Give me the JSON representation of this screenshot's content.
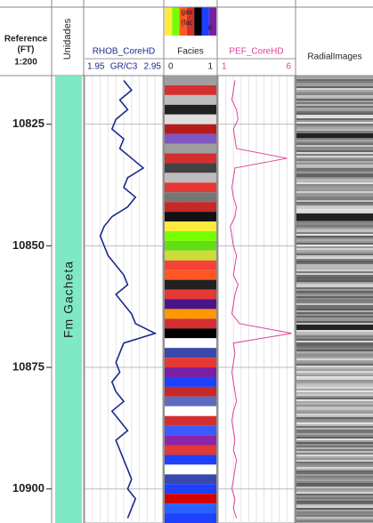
{
  "header": {
    "depth_title": "Reference",
    "depth_unit": "(FT)",
    "depth_scale": "1:200",
    "unit_title": "Unidades",
    "facies_legend": [
      "gas",
      "(fac",
      "6"
    ],
    "image_title": "RadialImages"
  },
  "chart_data": {
    "type": "well-log",
    "zone": "Fm Gacheta",
    "ylim": [
      10815,
      10907
    ],
    "yticks": [
      10825,
      10850,
      10875,
      10900
    ],
    "depth": [
      10816,
      10818,
      10820,
      10822,
      10824,
      10826,
      10828,
      10830,
      10832,
      10834,
      10836,
      10838,
      10840,
      10842,
      10844,
      10846,
      10848,
      10850,
      10852,
      10854,
      10856,
      10858,
      10860,
      10862,
      10864,
      10866,
      10868,
      10870,
      10872,
      10874,
      10876,
      10878,
      10880,
      10882,
      10884,
      10886,
      10888,
      10890,
      10892,
      10894,
      10896,
      10898,
      10900,
      10902,
      10904,
      10906
    ],
    "series": [
      {
        "name": "RHOB_CoreHD",
        "unit": "GR/C3",
        "color": "#1a2a8c",
        "xlim": [
          1.95,
          2.95
        ],
        "values": [
          2.45,
          2.55,
          2.4,
          2.5,
          2.35,
          2.3,
          2.45,
          2.4,
          2.55,
          2.7,
          2.5,
          2.45,
          2.6,
          2.5,
          2.3,
          2.2,
          2.15,
          2.2,
          2.25,
          2.35,
          2.45,
          2.5,
          2.35,
          2.45,
          2.55,
          2.6,
          2.85,
          2.45,
          2.4,
          2.35,
          2.4,
          2.3,
          2.35,
          2.45,
          2.3,
          2.4,
          2.5,
          2.35,
          2.4,
          2.45,
          2.5,
          2.55,
          2.5,
          2.6,
          2.55,
          2.5
        ]
      },
      {
        "name": "PEF_CoreHD",
        "color": "#e0409c",
        "xlim": [
          1,
          6
        ],
        "values": [
          2.1,
          2.0,
          1.9,
          2.2,
          2.3,
          2.0,
          2.1,
          2.2,
          5.5,
          2.1,
          2.0,
          1.9,
          2.0,
          2.2,
          2.1,
          1.8,
          1.9,
          2.0,
          2.2,
          2.1,
          2.0,
          2.3,
          2.1,
          2.0,
          1.9,
          2.4,
          5.8,
          2.0,
          2.1,
          2.0,
          1.9,
          2.0,
          2.1,
          2.2,
          2.0,
          1.9,
          2.0,
          2.1,
          2.0,
          2.2,
          2.1,
          2.0,
          1.9,
          2.1,
          2.0,
          2.2
        ]
      }
    ],
    "facies": {
      "name": "Facies",
      "xlim": [
        0,
        1
      ],
      "colors": [
        "#9e9e9e",
        "#d32f2f",
        "#bdbdbd",
        "#212121",
        "#e0e0e0",
        "#b71c1c",
        "#7e57c2",
        "#9e9e9e",
        "#d32f2f",
        "#424242",
        "#bdbdbd",
        "#e53935",
        "#757575",
        "#c62828",
        "#111111",
        "#ffeb3b",
        "#76ff03",
        "#64dd17",
        "#cddc39",
        "#f44336",
        "#ff5722",
        "#212121",
        "#e53935",
        "#4a148c",
        "#ff9800",
        "#d32f2f",
        "#000000",
        "#ffffff",
        "#3949ab",
        "#e53935",
        "#7b1fa2",
        "#1e40ff",
        "#c62828",
        "#5c6bc0",
        "#ffffff",
        "#d32f2f",
        "#3d5afe",
        "#8e24aa",
        "#e53935",
        "#1e40ff",
        "#ffffff",
        "#3949ab",
        "#1e40ff",
        "#d50000",
        "#2962ff",
        "#1e40ff"
      ]
    }
  }
}
